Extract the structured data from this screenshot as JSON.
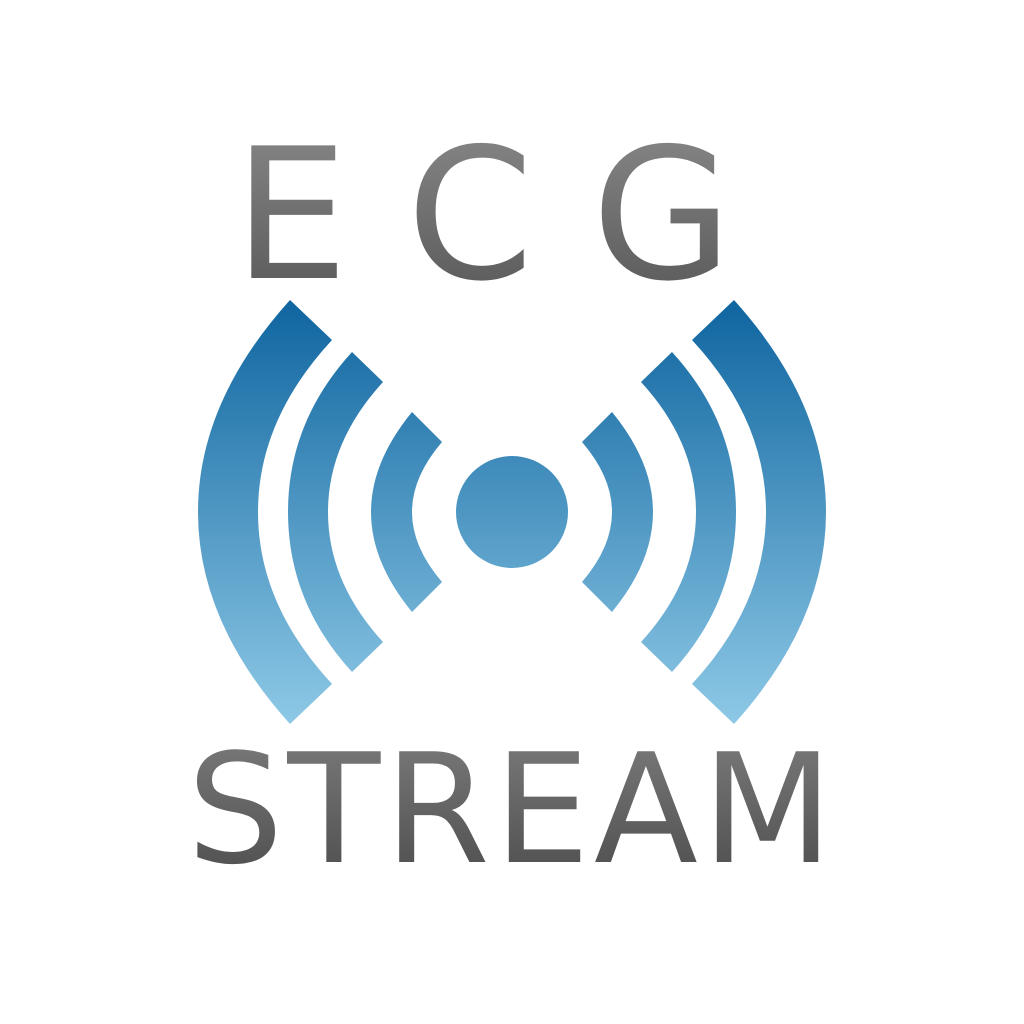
{
  "logo": {
    "top_text": "ECG",
    "bottom_text": "STREAM",
    "icon": "broadcast-signal-icon",
    "colors": {
      "background": "#ffffff",
      "text_gradient_top": "#8a8a8a",
      "text_gradient_bottom": "#4e4e4e",
      "wave_gradient_top": "#0f65a0",
      "wave_gradient_bottom": "#8ec9e6"
    }
  }
}
